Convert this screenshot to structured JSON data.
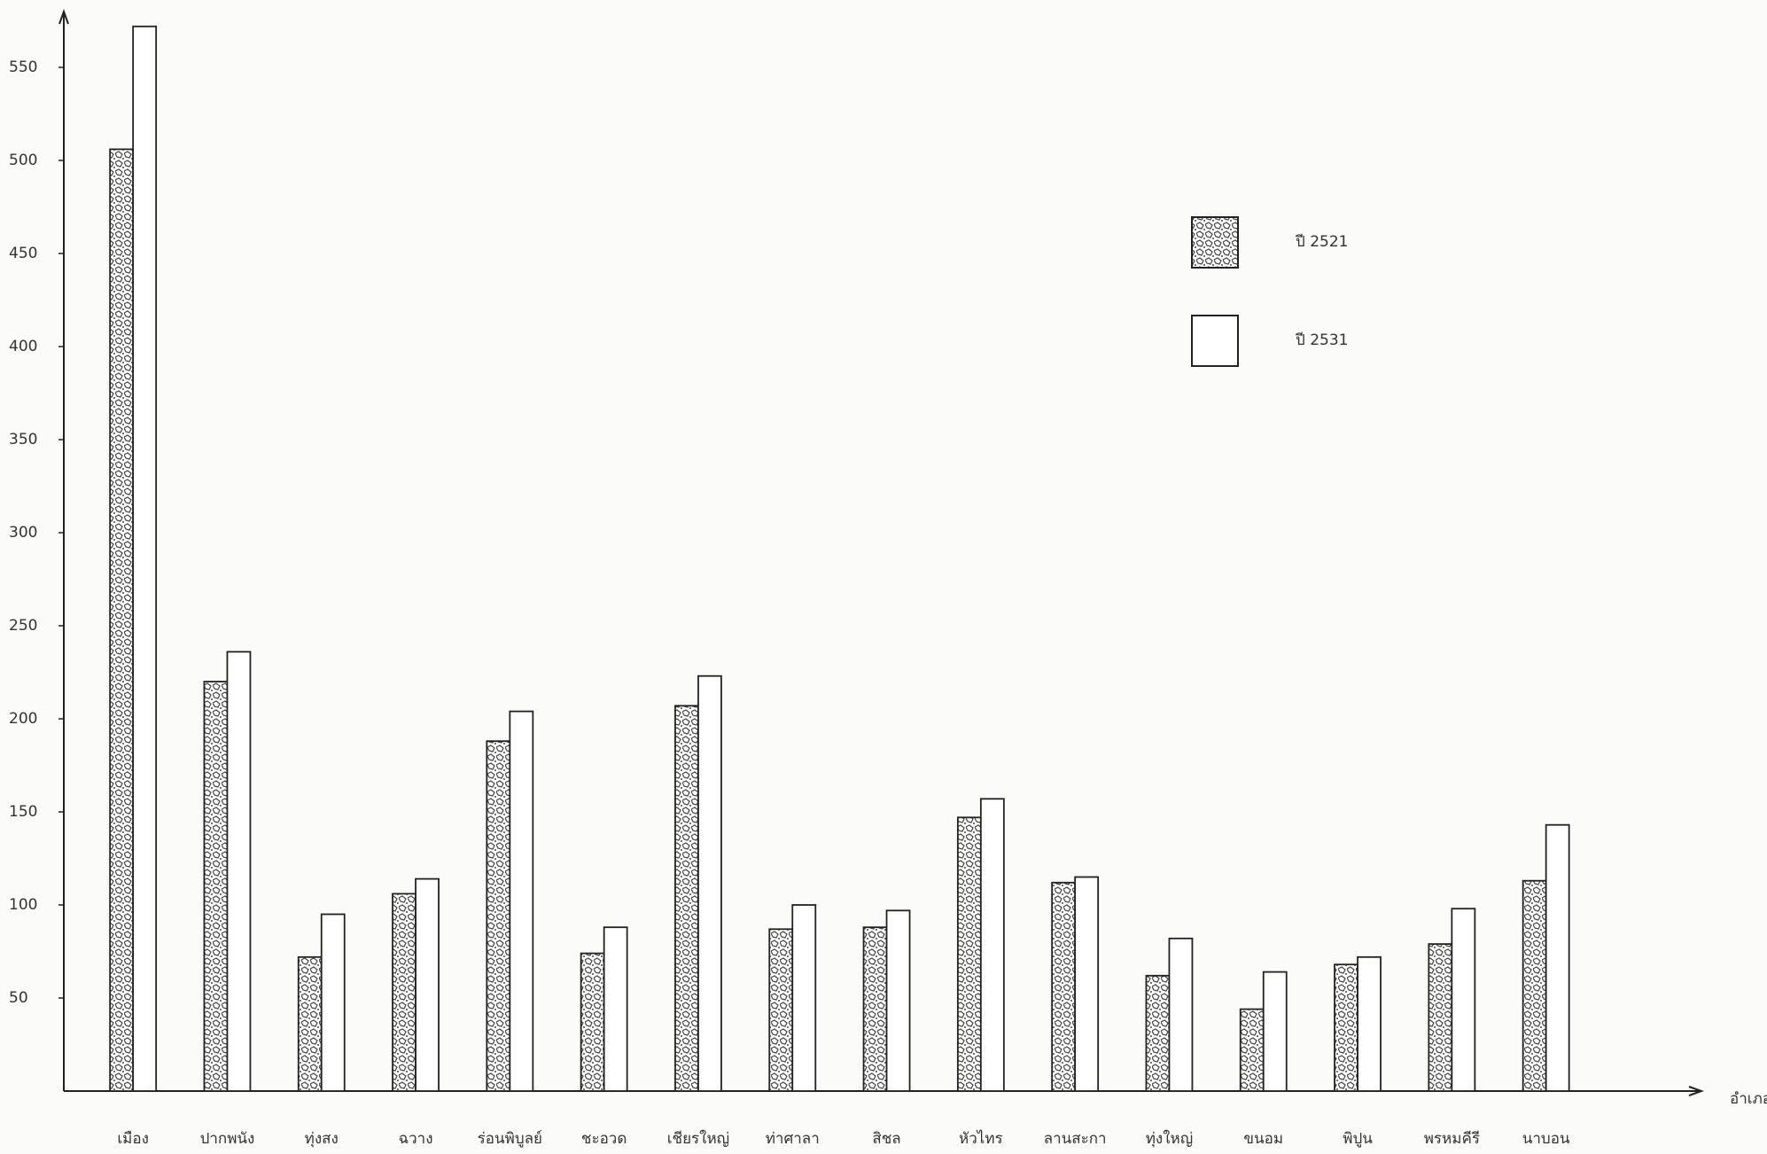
{
  "chart_data": {
    "type": "bar",
    "x_label": "อำเภอ",
    "categories": [
      "เมือง",
      "ปากพนัง",
      "ทุ่งสง",
      "ฉวาง",
      "ร่อนพิบูลย์",
      "ชะอวด",
      "เชียรใหญ่",
      "ท่าศาลา",
      "สิชล",
      "หัวไทร",
      "ลานสะกา",
      "ทุ่งใหญ่",
      "ขนอม",
      "พิปูน",
      "พรหมคีรี",
      "นาบอน"
    ],
    "series": [
      {
        "name": "ปี 2521",
        "color": "#444444",
        "pattern": "stipple",
        "values": [
          506,
          220,
          72,
          106,
          188,
          74,
          207,
          87,
          88,
          147,
          112,
          62,
          44,
          68,
          79,
          113
        ]
      },
      {
        "name": "ปี 2531",
        "color": "#ffffff",
        "values": [
          572,
          236,
          95,
          114,
          204,
          88,
          223,
          100,
          97,
          157,
          115,
          82,
          64,
          72,
          98,
          143
        ]
      }
    ],
    "ylim": [
      0,
      580
    ],
    "yticks": [
      50,
      100,
      150,
      200,
      250,
      300,
      350,
      400,
      450,
      500,
      550
    ],
    "grid": false,
    "legend": "upper right"
  }
}
